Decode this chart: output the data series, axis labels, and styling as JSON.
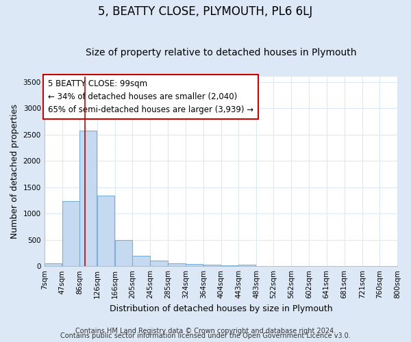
{
  "title": "5, BEATTY CLOSE, PLYMOUTH, PL6 6LJ",
  "subtitle": "Size of property relative to detached houses in Plymouth",
  "xlabel": "Distribution of detached houses by size in Plymouth",
  "ylabel": "Number of detached properties",
  "bar_color": "#c5d9f0",
  "bar_edge_color": "#7bafd4",
  "bar_left_edges": [
    7,
    47,
    86,
    126,
    166,
    205,
    245,
    285,
    324,
    364,
    404,
    443
  ],
  "bar_heights": [
    50,
    1240,
    2580,
    1340,
    490,
    200,
    110,
    50,
    40,
    30,
    20,
    30
  ],
  "bin_width": 39,
  "x_tick_labels": [
    "7sqm",
    "47sqm",
    "86sqm",
    "126sqm",
    "166sqm",
    "205sqm",
    "245sqm",
    "285sqm",
    "324sqm",
    "364sqm",
    "404sqm",
    "443sqm",
    "483sqm",
    "522sqm",
    "562sqm",
    "602sqm",
    "641sqm",
    "681sqm",
    "721sqm",
    "760sqm",
    "800sqm"
  ],
  "x_tick_positions": [
    7,
    47,
    86,
    126,
    166,
    205,
    245,
    285,
    324,
    364,
    404,
    443,
    483,
    522,
    562,
    602,
    641,
    681,
    721,
    760,
    800
  ],
  "ylim": [
    0,
    3600
  ],
  "xlim": [
    7,
    800
  ],
  "property_size": 99,
  "red_line_color": "#cc0000",
  "annotation_text": "5 BEATTY CLOSE: 99sqm\n← 34% of detached houses are smaller (2,040)\n65% of semi-detached houses are larger (3,939) →",
  "annotation_box_color": "#ffffff",
  "annotation_box_edge_color": "#cc0000",
  "footer_line1": "Contains HM Land Registry data © Crown copyright and database right 2024.",
  "footer_line2": "Contains public sector information licensed under the Open Government Licence v3.0.",
  "figure_bg_color": "#dce8f5",
  "plot_bg_color": "#ffffff",
  "grid_color": "#dce8f5",
  "title_fontsize": 12,
  "subtitle_fontsize": 10,
  "label_fontsize": 9,
  "tick_fontsize": 7.5,
  "footer_fontsize": 7,
  "annotation_fontsize": 8.5
}
